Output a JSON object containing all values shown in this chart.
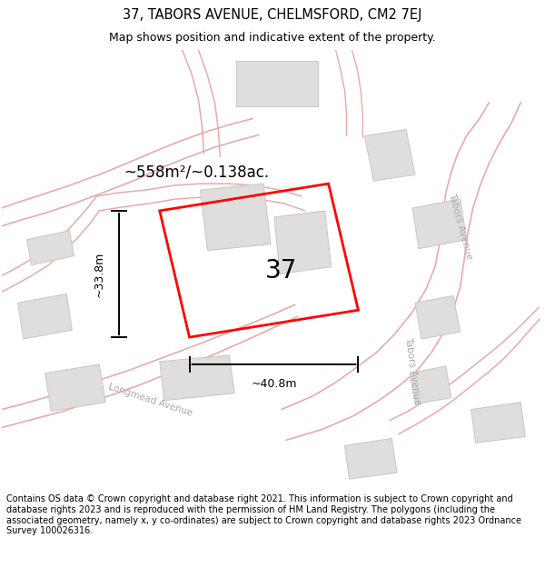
{
  "title_line1": "37, TABORS AVENUE, CHELMSFORD, CM2 7EJ",
  "title_line2": "Map shows position and indicative extent of the property.",
  "area_label": "~558m²/~0.138ac.",
  "width_label": "~40.8m",
  "height_label": "~33.8m",
  "property_number": "37",
  "footer_text": "Contains OS data © Crown copyright and database right 2021. This information is subject to Crown copyright and database rights 2023 and is reproduced with the permission of HM Land Registry. The polygons (including the associated geometry, namely x, y co-ordinates) are subject to Crown copyright and database rights 2023 Ordnance Survey 100026316.",
  "map_bg": "#f7f6f4",
  "road_color": "#e8aaaa",
  "building_fill": "#e0dedd",
  "building_edge": "#c8c6c4",
  "plot_color": "#ff0000",
  "title_bg": "#ffffff",
  "footer_bg": "#ffffff",
  "street_color": "#aaaaaa"
}
